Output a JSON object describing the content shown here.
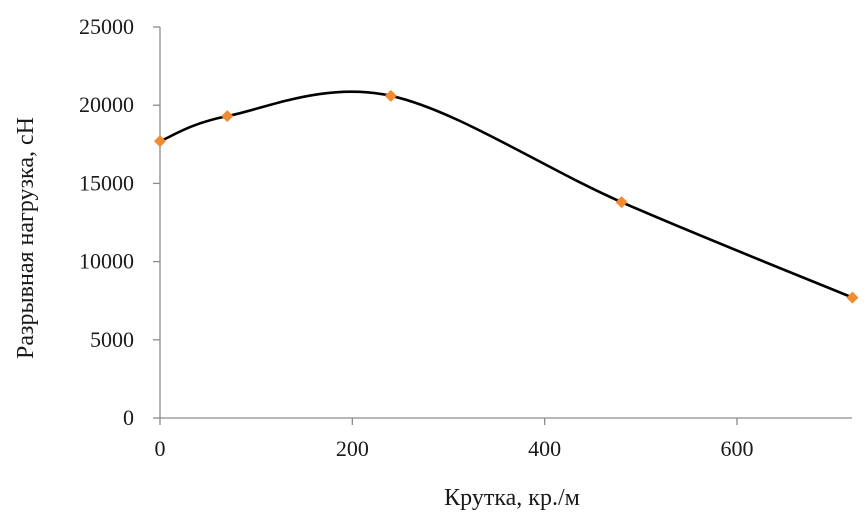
{
  "chart_data": {
    "type": "scatter",
    "title": "",
    "xlabel": "Крутка, кр./м",
    "ylabel": "Разрывная нагрузка, сН",
    "xlim": [
      0,
      720
    ],
    "ylim": [
      0,
      25000
    ],
    "xticks": [
      "0",
      "200",
      "400",
      "600"
    ],
    "yticks": [
      "0",
      "5000",
      "10000",
      "15000",
      "20000",
      "25000"
    ],
    "grid": false,
    "legend": "none",
    "series": [
      {
        "x": [
          0,
          70,
          240,
          480,
          720
        ],
        "y": [
          17700,
          19300,
          20600,
          13800,
          7700
        ],
        "marker": "diamond",
        "marker_color": "#f28a30",
        "line": "smooth",
        "line_color": "#000000"
      }
    ]
  }
}
